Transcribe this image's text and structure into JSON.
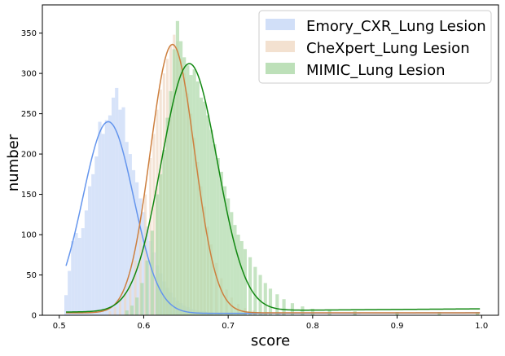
{
  "chart_data": {
    "type": "histogram",
    "xlabel": "score",
    "ylabel": "number",
    "xlim": [
      0.48,
      1.02
    ],
    "ylim": [
      0,
      385
    ],
    "xticks": [
      0.5,
      0.6,
      0.7,
      0.8,
      0.9,
      1.0
    ],
    "xtick_labels": [
      "0.5",
      "0.6",
      "0.7",
      "0.8",
      "0.9",
      "1.0"
    ],
    "yticks": [
      0,
      50,
      100,
      150,
      200,
      250,
      300,
      350
    ],
    "ytick_labels": [
      "0",
      "50",
      "100",
      "150",
      "200",
      "250",
      "300",
      "350"
    ],
    "legend_position": "upper-right",
    "series": [
      {
        "name": "Emory_CXR_Lung Lesion",
        "bar_color": "#c6d7f6",
        "curve_color": "#6495ed",
        "bin_width": 0.004,
        "bins": [
          {
            "x": 0.508,
            "y": 25
          },
          {
            "x": 0.512,
            "y": 55
          },
          {
            "x": 0.516,
            "y": 92
          },
          {
            "x": 0.52,
            "y": 102
          },
          {
            "x": 0.524,
            "y": 96
          },
          {
            "x": 0.528,
            "y": 108
          },
          {
            "x": 0.532,
            "y": 130
          },
          {
            "x": 0.536,
            "y": 160
          },
          {
            "x": 0.54,
            "y": 175
          },
          {
            "x": 0.544,
            "y": 197
          },
          {
            "x": 0.548,
            "y": 240
          },
          {
            "x": 0.552,
            "y": 225
          },
          {
            "x": 0.556,
            "y": 242
          },
          {
            "x": 0.56,
            "y": 248
          },
          {
            "x": 0.564,
            "y": 270
          },
          {
            "x": 0.568,
            "y": 282
          },
          {
            "x": 0.572,
            "y": 255
          },
          {
            "x": 0.576,
            "y": 258
          },
          {
            "x": 0.58,
            "y": 215
          },
          {
            "x": 0.584,
            "y": 200
          },
          {
            "x": 0.588,
            "y": 180
          },
          {
            "x": 0.592,
            "y": 165
          },
          {
            "x": 0.596,
            "y": 145
          },
          {
            "x": 0.6,
            "y": 128
          },
          {
            "x": 0.604,
            "y": 110
          },
          {
            "x": 0.608,
            "y": 92
          },
          {
            "x": 0.612,
            "y": 78
          },
          {
            "x": 0.616,
            "y": 62
          },
          {
            "x": 0.62,
            "y": 52
          },
          {
            "x": 0.624,
            "y": 42
          },
          {
            "x": 0.628,
            "y": 34
          },
          {
            "x": 0.632,
            "y": 28
          },
          {
            "x": 0.636,
            "y": 22
          },
          {
            "x": 0.64,
            "y": 18
          },
          {
            "x": 0.644,
            "y": 15
          },
          {
            "x": 0.648,
            "y": 12
          },
          {
            "x": 0.652,
            "y": 10
          },
          {
            "x": 0.656,
            "y": 8
          },
          {
            "x": 0.66,
            "y": 7
          },
          {
            "x": 0.664,
            "y": 6
          },
          {
            "x": 0.668,
            "y": 5
          },
          {
            "x": 0.672,
            "y": 5
          },
          {
            "x": 0.676,
            "y": 4
          },
          {
            "x": 0.68,
            "y": 4
          },
          {
            "x": 0.69,
            "y": 3
          },
          {
            "x": 0.7,
            "y": 3
          },
          {
            "x": 0.72,
            "y": 2
          },
          {
            "x": 0.74,
            "y": 2
          },
          {
            "x": 0.76,
            "y": 2
          },
          {
            "x": 0.8,
            "y": 1
          },
          {
            "x": 0.85,
            "y": 1
          }
        ],
        "fit": {
          "mean": 0.558,
          "sd": 0.03,
          "peak": 238,
          "tail_start": 2.0,
          "tail_end": 3.0
        }
      },
      {
        "name": "CheXpert_Lung Lesion",
        "bar_color": "#f0d9c4",
        "curve_color": "#cd7f3e",
        "bin_width": 0.003,
        "bins": [
          {
            "x": 0.56,
            "y": 5
          },
          {
            "x": 0.566,
            "y": 10
          },
          {
            "x": 0.572,
            "y": 18
          },
          {
            "x": 0.578,
            "y": 28
          },
          {
            "x": 0.584,
            "y": 42
          },
          {
            "x": 0.59,
            "y": 68
          },
          {
            "x": 0.596,
            "y": 105
          },
          {
            "x": 0.602,
            "y": 150
          },
          {
            "x": 0.608,
            "y": 195
          },
          {
            "x": 0.612,
            "y": 225
          },
          {
            "x": 0.616,
            "y": 255
          },
          {
            "x": 0.62,
            "y": 280
          },
          {
            "x": 0.624,
            "y": 300
          },
          {
            "x": 0.628,
            "y": 318
          },
          {
            "x": 0.632,
            "y": 335
          },
          {
            "x": 0.636,
            "y": 348
          },
          {
            "x": 0.64,
            "y": 340
          },
          {
            "x": 0.644,
            "y": 318
          },
          {
            "x": 0.648,
            "y": 300
          },
          {
            "x": 0.652,
            "y": 275
          },
          {
            "x": 0.656,
            "y": 250
          },
          {
            "x": 0.66,
            "y": 220
          },
          {
            "x": 0.664,
            "y": 190
          },
          {
            "x": 0.668,
            "y": 160
          },
          {
            "x": 0.672,
            "y": 135
          },
          {
            "x": 0.676,
            "y": 110
          },
          {
            "x": 0.68,
            "y": 88
          },
          {
            "x": 0.686,
            "y": 65
          },
          {
            "x": 0.692,
            "y": 46
          },
          {
            "x": 0.698,
            "y": 32
          },
          {
            "x": 0.704,
            "y": 22
          },
          {
            "x": 0.712,
            "y": 14
          },
          {
            "x": 0.72,
            "y": 9
          },
          {
            "x": 0.73,
            "y": 6
          },
          {
            "x": 0.745,
            "y": 4
          },
          {
            "x": 0.765,
            "y": 3
          },
          {
            "x": 0.8,
            "y": 2
          },
          {
            "x": 0.85,
            "y": 2
          },
          {
            "x": 0.9,
            "y": 2
          },
          {
            "x": 0.95,
            "y": 2
          },
          {
            "x": 0.995,
            "y": 2
          }
        ],
        "fit": {
          "mean": 0.634,
          "sd": 0.026,
          "peak": 333,
          "tail_start": 3.0,
          "tail_end": 3.0
        }
      },
      {
        "name": "MIMIC_Lung Lesion",
        "bar_color": "#add8a8",
        "curve_color": "#118811",
        "bin_width": 0.004,
        "bins": [
          {
            "x": 0.58,
            "y": 6
          },
          {
            "x": 0.586,
            "y": 12
          },
          {
            "x": 0.592,
            "y": 22
          },
          {
            "x": 0.598,
            "y": 40
          },
          {
            "x": 0.604,
            "y": 68
          },
          {
            "x": 0.61,
            "y": 105
          },
          {
            "x": 0.616,
            "y": 150
          },
          {
            "x": 0.62,
            "y": 175
          },
          {
            "x": 0.624,
            "y": 205
          },
          {
            "x": 0.628,
            "y": 245
          },
          {
            "x": 0.632,
            "y": 278
          },
          {
            "x": 0.636,
            "y": 330
          },
          {
            "x": 0.64,
            "y": 365
          },
          {
            "x": 0.644,
            "y": 340
          },
          {
            "x": 0.648,
            "y": 320
          },
          {
            "x": 0.652,
            "y": 310
          },
          {
            "x": 0.656,
            "y": 298
          },
          {
            "x": 0.66,
            "y": 305
          },
          {
            "x": 0.664,
            "y": 290
          },
          {
            "x": 0.668,
            "y": 270
          },
          {
            "x": 0.672,
            "y": 265
          },
          {
            "x": 0.676,
            "y": 248
          },
          {
            "x": 0.68,
            "y": 230
          },
          {
            "x": 0.684,
            "y": 212
          },
          {
            "x": 0.688,
            "y": 195
          },
          {
            "x": 0.692,
            "y": 178
          },
          {
            "x": 0.696,
            "y": 160
          },
          {
            "x": 0.7,
            "y": 145
          },
          {
            "x": 0.704,
            "y": 128
          },
          {
            "x": 0.708,
            "y": 112
          },
          {
            "x": 0.712,
            "y": 100
          },
          {
            "x": 0.716,
            "y": 92
          },
          {
            "x": 0.72,
            "y": 82
          },
          {
            "x": 0.726,
            "y": 72
          },
          {
            "x": 0.732,
            "y": 60
          },
          {
            "x": 0.738,
            "y": 50
          },
          {
            "x": 0.744,
            "y": 40
          },
          {
            "x": 0.75,
            "y": 33
          },
          {
            "x": 0.758,
            "y": 26
          },
          {
            "x": 0.766,
            "y": 20
          },
          {
            "x": 0.776,
            "y": 15
          },
          {
            "x": 0.788,
            "y": 11
          },
          {
            "x": 0.8,
            "y": 8
          },
          {
            "x": 0.82,
            "y": 6
          },
          {
            "x": 0.85,
            "y": 5
          },
          {
            "x": 0.9,
            "y": 4
          },
          {
            "x": 0.95,
            "y": 4
          },
          {
            "x": 0.995,
            "y": 4
          }
        ],
        "fit": {
          "mean": 0.654,
          "sd": 0.033,
          "peak": 307,
          "tail_start": 4.0,
          "tail_end": 8.0
        }
      }
    ]
  }
}
